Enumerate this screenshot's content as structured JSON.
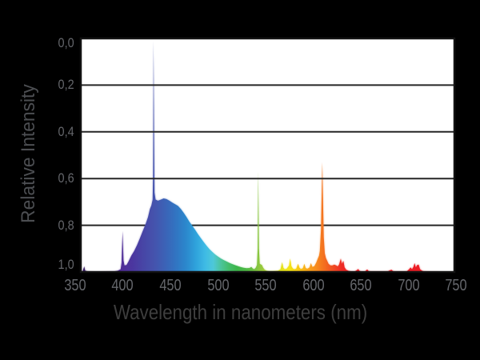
{
  "figure": {
    "colors": {
      "background": "#000000",
      "plot_background": "#ffffff",
      "gridline": "#262626",
      "plot_border": "#121212",
      "tick_label": "#65676c",
      "x_axis_title": "#3e3e3e",
      "y_axis_title": "#4c4e52"
    }
  },
  "chart_data": {
    "type": "area",
    "title": "",
    "xlabel": "Wavelength in nanometers (nm)",
    "ylabel": "Relative Intensity",
    "x_range": [
      356,
      748
    ],
    "y_range": [
      0,
      1.0
    ],
    "x_ticks": [
      350,
      400,
      450,
      500,
      550,
      600,
      650,
      700,
      750
    ],
    "x_tick_labels": [
      "350",
      "400",
      "450",
      "500",
      "550",
      "600",
      "650",
      "700",
      "750"
    ],
    "y_ticks": [
      0,
      0.2,
      0.4,
      0.6,
      0.8,
      1.0
    ],
    "y_tick_labels": [
      "0,0",
      "0,2",
      "0,4",
      "0,6",
      "0,8",
      "1,0"
    ],
    "grid": "horizontal gridlines every 0.2, drawn across white plot area",
    "legend": "none",
    "description": "Lamp emission spectrum: relative intensity vs wavelength, area filled with visible-spectrum colors; narrow mercury-type emission lines over a broad blue phosphor band",
    "peaks": [
      {
        "wavelength_nm": 400,
        "intensity": 0.175,
        "note": "violet line"
      },
      {
        "wavelength_nm": 432,
        "intensity": 0.99,
        "note": "tallest blue-violet line"
      },
      {
        "wavelength_nm": 445,
        "intensity": 0.31,
        "note": "broad blue band"
      },
      {
        "wavelength_nm": 542,
        "intensity": 0.43,
        "note": "green line"
      },
      {
        "wavelength_nm": 576,
        "intensity": 0.06,
        "note": "yellow doublet"
      },
      {
        "wavelength_nm": 609,
        "intensity": 0.47,
        "note": "orange line"
      },
      {
        "wavelength_nm": 629,
        "intensity": 0.06,
        "note": "red bump"
      },
      {
        "wavelength_nm": 706,
        "intensity": 0.04,
        "note": "deep-red cluster"
      }
    ],
    "series": [
      {
        "name": "relative spectral intensity",
        "points": [
          [
            356,
            0
          ],
          [
            358,
            0.004
          ],
          [
            359.6,
            0.024
          ],
          [
            360.6,
            0.006
          ],
          [
            364,
            0.002
          ],
          [
            370,
            0.001
          ],
          [
            378,
            0.001
          ],
          [
            385,
            0.002
          ],
          [
            391,
            0.003
          ],
          [
            395,
            0.006
          ],
          [
            397.8,
            0.012
          ],
          [
            398.8,
            0.04
          ],
          [
            399.8,
            0.175
          ],
          [
            400.8,
            0.05
          ],
          [
            401.8,
            0.028
          ],
          [
            404,
            0.03
          ],
          [
            406,
            0.045
          ],
          [
            409,
            0.07
          ],
          [
            412,
            0.09
          ],
          [
            415,
            0.115
          ],
          [
            418,
            0.145
          ],
          [
            421,
            0.175
          ],
          [
            424,
            0.205
          ],
          [
            426.5,
            0.235
          ],
          [
            428.5,
            0.27
          ],
          [
            430,
            0.285
          ],
          [
            431.4,
            0.31
          ],
          [
            431.9,
            0.42
          ],
          [
            432.3,
            0.99
          ],
          [
            432.9,
            0.6
          ],
          [
            433.4,
            0.34
          ],
          [
            434.5,
            0.31
          ],
          [
            437,
            0.305
          ],
          [
            440,
            0.31
          ],
          [
            443,
            0.315
          ],
          [
            446,
            0.312
          ],
          [
            449,
            0.305
          ],
          [
            452,
            0.297
          ],
          [
            455,
            0.29
          ],
          [
            458,
            0.283
          ],
          [
            461,
            0.27
          ],
          [
            464,
            0.253
          ],
          [
            467,
            0.235
          ],
          [
            470,
            0.215
          ],
          [
            473,
            0.198
          ],
          [
            476,
            0.18
          ],
          [
            479,
            0.162
          ],
          [
            482,
            0.145
          ],
          [
            485,
            0.128
          ],
          [
            488,
            0.112
          ],
          [
            491,
            0.098
          ],
          [
            494,
            0.086
          ],
          [
            497,
            0.075
          ],
          [
            500,
            0.066
          ],
          [
            503,
            0.058
          ],
          [
            506,
            0.051
          ],
          [
            509,
            0.045
          ],
          [
            512,
            0.039
          ],
          [
            515,
            0.034
          ],
          [
            518,
            0.029
          ],
          [
            521,
            0.025
          ],
          [
            524,
            0.021
          ],
          [
            527,
            0.018
          ],
          [
            530,
            0.016
          ],
          [
            533,
            0.017
          ],
          [
            535,
            0.022
          ],
          [
            536.5,
            0.015
          ],
          [
            538,
            0.012
          ],
          [
            539.5,
            0.018
          ],
          [
            540.8,
            0.03
          ],
          [
            541.6,
            0.1
          ],
          [
            542.2,
            0.43
          ],
          [
            542.9,
            0.1
          ],
          [
            543.8,
            0.035
          ],
          [
            546,
            0.03
          ],
          [
            547.5,
            0.018
          ],
          [
            549,
            0.01
          ],
          [
            551,
            0.006
          ],
          [
            554,
            0.004
          ],
          [
            557,
            0.004
          ],
          [
            560,
            0.005
          ],
          [
            563,
            0.006
          ],
          [
            565.5,
            0.012
          ],
          [
            567.3,
            0.042
          ],
          [
            568.6,
            0.018
          ],
          [
            570,
            0.012
          ],
          [
            572,
            0.014
          ],
          [
            574.5,
            0.028
          ],
          [
            575.7,
            0.058
          ],
          [
            577,
            0.025
          ],
          [
            578.5,
            0.015
          ],
          [
            580,
            0.012
          ],
          [
            582,
            0.014
          ],
          [
            584,
            0.035
          ],
          [
            585.5,
            0.018
          ],
          [
            587,
            0.013
          ],
          [
            589,
            0.016
          ],
          [
            590.5,
            0.035
          ],
          [
            592,
            0.016
          ],
          [
            594,
            0.014
          ],
          [
            596,
            0.02
          ],
          [
            597.5,
            0.038
          ],
          [
            599,
            0.022
          ],
          [
            601,
            0.025
          ],
          [
            603,
            0.04
          ],
          [
            604.5,
            0.055
          ],
          [
            606,
            0.07
          ],
          [
            606.8,
            0.09
          ],
          [
            608,
            0.18
          ],
          [
            608.8,
            0.35
          ],
          [
            609.4,
            0.47
          ],
          [
            610.1,
            0.32
          ],
          [
            610.9,
            0.15
          ],
          [
            612,
            0.08
          ],
          [
            613.2,
            0.06
          ],
          [
            614.5,
            0.048
          ],
          [
            616,
            0.035
          ],
          [
            618,
            0.028
          ],
          [
            620,
            0.028
          ],
          [
            622,
            0.032
          ],
          [
            624,
            0.028
          ],
          [
            625.5,
            0.024
          ],
          [
            627,
            0.032
          ],
          [
            628.8,
            0.058
          ],
          [
            630,
            0.035
          ],
          [
            631.5,
            0.048
          ],
          [
            632.8,
            0.02
          ],
          [
            634.5,
            0.01
          ],
          [
            637,
            0.005
          ],
          [
            640,
            0.003
          ],
          [
            643,
            0.002
          ],
          [
            645.5,
            0.008
          ],
          [
            647,
            0.013
          ],
          [
            648.5,
            0.005
          ],
          [
            651,
            0.002
          ],
          [
            654,
            0.002
          ],
          [
            656.5,
            0.011
          ],
          [
            658,
            0.004
          ],
          [
            661,
            0.002
          ],
          [
            665,
            0.002
          ],
          [
            670,
            0.002
          ],
          [
            674,
            0.002
          ],
          [
            678,
            0.003
          ],
          [
            680.5,
            0.008
          ],
          [
            682,
            0.01
          ],
          [
            683.5,
            0.004
          ],
          [
            686,
            0.002
          ],
          [
            690,
            0.002
          ],
          [
            694,
            0.002
          ],
          [
            698,
            0.003
          ],
          [
            700.5,
            0.012
          ],
          [
            702,
            0.02
          ],
          [
            703.5,
            0.012
          ],
          [
            705,
            0.022
          ],
          [
            706.3,
            0.038
          ],
          [
            707.5,
            0.02
          ],
          [
            709,
            0.03
          ],
          [
            710.5,
            0.032
          ],
          [
            712,
            0.012
          ],
          [
            714,
            0.006
          ],
          [
            716,
            0.003
          ],
          [
            719,
            0.002
          ],
          [
            723,
            0.001
          ],
          [
            728,
            0.001
          ],
          [
            734,
            0
          ],
          [
            748,
            0
          ]
        ]
      }
    ],
    "spectral_gradient": [
      {
        "wl": 356,
        "color": "#341a5e"
      },
      {
        "wl": 372,
        "color": "#3f2170"
      },
      {
        "wl": 385,
        "color": "#482786"
      },
      {
        "wl": 398,
        "color": "#502c96"
      },
      {
        "wl": 410,
        "color": "#4b369f"
      },
      {
        "wl": 422,
        "color": "#4746a6"
      },
      {
        "wl": 433,
        "color": "#4553ad"
      },
      {
        "wl": 444,
        "color": "#3c62b6"
      },
      {
        "wl": 455,
        "color": "#3273c1"
      },
      {
        "wl": 466,
        "color": "#2b87cc"
      },
      {
        "wl": 477,
        "color": "#2fa3dc"
      },
      {
        "wl": 487,
        "color": "#3fbce5"
      },
      {
        "wl": 495,
        "color": "#4ec8d8"
      },
      {
        "wl": 503,
        "color": "#4cc49b"
      },
      {
        "wl": 511,
        "color": "#44bd6d"
      },
      {
        "wl": 520,
        "color": "#3cb54a"
      },
      {
        "wl": 531,
        "color": "#52ba45"
      },
      {
        "wl": 543,
        "color": "#8cc63f"
      },
      {
        "wl": 554,
        "color": "#b8d335"
      },
      {
        "wl": 566,
        "color": "#e2e21e"
      },
      {
        "wl": 575,
        "color": "#f2e414"
      },
      {
        "wl": 585,
        "color": "#f7c614"
      },
      {
        "wl": 594,
        "color": "#f9a51a"
      },
      {
        "wl": 603,
        "color": "#f68b1e"
      },
      {
        "wl": 611,
        "color": "#f4701f"
      },
      {
        "wl": 620,
        "color": "#f04f23"
      },
      {
        "wl": 630,
        "color": "#ee2a24"
      },
      {
        "wl": 642,
        "color": "#ec1c24"
      },
      {
        "wl": 748,
        "color": "#ec1c24"
      }
    ]
  }
}
